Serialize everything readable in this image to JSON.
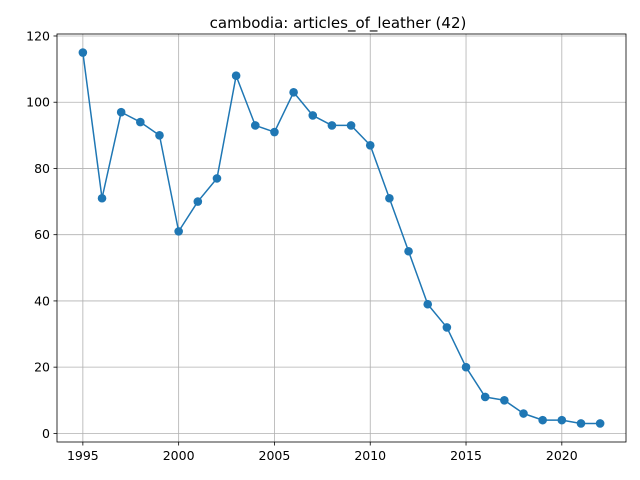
{
  "chart_data": {
    "type": "line",
    "title": "cambodia: articles_of_leather (42)",
    "xlabel": "",
    "ylabel": "",
    "x": [
      1995,
      1996,
      1997,
      1998,
      1999,
      2000,
      2001,
      2002,
      2003,
      2004,
      2005,
      2006,
      2007,
      2008,
      2009,
      2010,
      2011,
      2012,
      2013,
      2014,
      2015,
      2016,
      2017,
      2018,
      2019,
      2020,
      2021,
      2022
    ],
    "series": [
      {
        "values": [
          115,
          71,
          97,
          94,
          90,
          61,
          70,
          77,
          108,
          93,
          91,
          103,
          96,
          93,
          93,
          87,
          71,
          55,
          39,
          32,
          20,
          11,
          10,
          6,
          4,
          4,
          3,
          3
        ],
        "color": "#1f77b4",
        "marker": "circle"
      }
    ],
    "xlim": [
      1993.65,
      2023.35
    ],
    "ylim": [
      -2.6,
      120.6
    ],
    "xticks": [
      1995,
      2000,
      2005,
      2010,
      2015,
      2020
    ],
    "yticks": [
      0,
      20,
      40,
      60,
      80,
      100,
      120
    ],
    "grid": true,
    "legend": "none"
  }
}
